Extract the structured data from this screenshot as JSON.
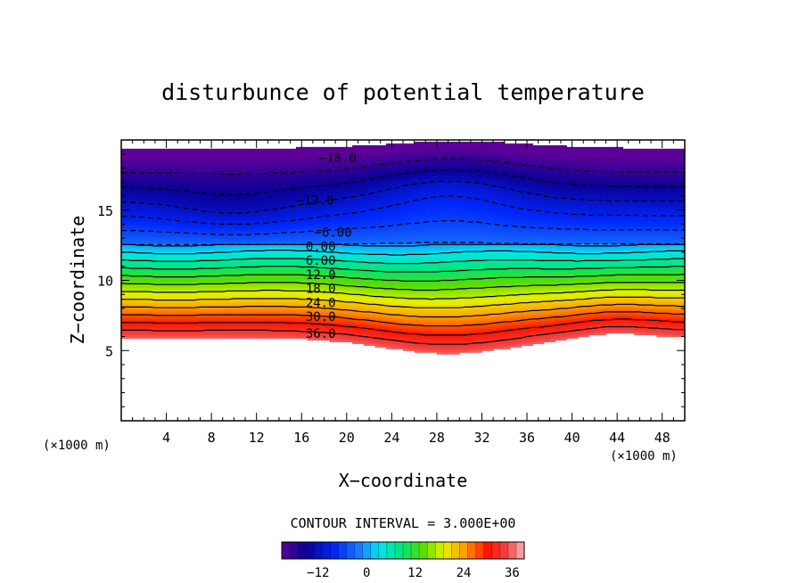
{
  "chart_data": {
    "type": "heatmap",
    "title": "disturbunce of potential temperature",
    "xlabel": "X−coordinate",
    "ylabel": "Z−coordinate",
    "x_unit_left": "(×1000 m)",
    "x_unit_right": "(×1000 m)",
    "xlim": [
      0,
      50
    ],
    "ylim": [
      0,
      20
    ],
    "x_ticks": [
      "4",
      "8",
      "12",
      "16",
      "20",
      "24",
      "28",
      "32",
      "36",
      "40",
      "44",
      "48"
    ],
    "y_ticks": [
      "5",
      "10",
      "15"
    ],
    "contour_interval_text": "CONTOUR INTERVAL = 3.000E+00",
    "contour_labels": [
      {
        "text": "−18.0",
        "x": 19.2,
        "y": 18.4
      },
      {
        "text": "−12.0",
        "x": 17.2,
        "y": 15.4
      },
      {
        "text": "−6.00",
        "x": 18.8,
        "y": 13.1
      },
      {
        "text": "0.00",
        "x": 17.7,
        "y": 12.1
      },
      {
        "text": "6.00",
        "x": 17.7,
        "y": 11.1
      },
      {
        "text": "12.0",
        "x": 17.7,
        "y": 10.1
      },
      {
        "text": "18.0",
        "x": 17.7,
        "y": 9.1
      },
      {
        "text": "24.0",
        "x": 17.7,
        "y": 8.1
      },
      {
        "text": "30.0",
        "x": 17.7,
        "y": 7.1
      },
      {
        "text": "36.0",
        "x": 17.7,
        "y": 5.9
      }
    ],
    "colorbar": {
      "min": -21,
      "max": 39,
      "ticks": [
        "−12",
        "0",
        "12",
        "24",
        "36"
      ],
      "tick_values": [
        -12,
        0,
        12,
        24,
        36
      ]
    },
    "colors": {
      "frame": "#000000",
      "background": "#ffffff"
    }
  }
}
